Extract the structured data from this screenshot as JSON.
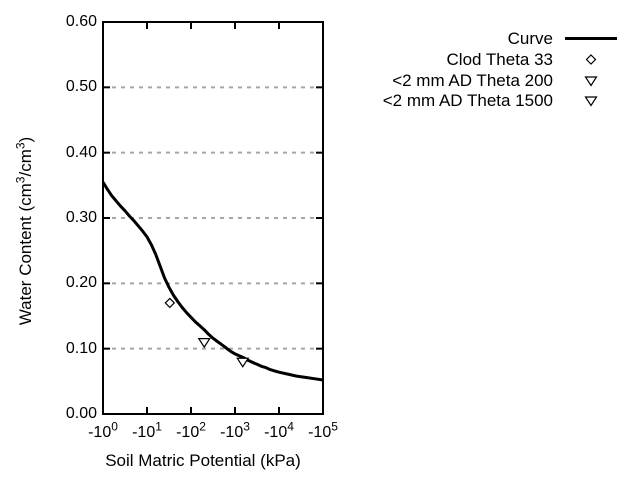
{
  "colors": {
    "foreground": "#000000",
    "grid": "#a6a6a6",
    "background": "#ffffff",
    "curve": "#000000"
  },
  "chart_data": {
    "type": "line",
    "title": "",
    "xlabel": "Soil Matric Potential (kPa)",
    "ylabel": "Water Content (cm3/cm3)",
    "ylabel_parts": [
      {
        "text": "Water Content (cm",
        "sup": false
      },
      {
        "text": "3",
        "sup": true
      },
      {
        "text": "/cm",
        "sup": false
      },
      {
        "text": "3",
        "sup": true
      },
      {
        "text": ")",
        "sup": false
      }
    ],
    "x_axis": {
      "scale": "log10 of negative kPa",
      "decade_min": 0,
      "decade_max": 5
    },
    "ylim": [
      0.0,
      0.6
    ],
    "grid_y": [
      0.1,
      0.2,
      0.3,
      0.4,
      0.5
    ],
    "grid_style": "dashed",
    "legend_position": "outside top-right",
    "y_ticks": [
      {
        "value": 0.0,
        "label": "0.00"
      },
      {
        "value": 0.1,
        "label": "0.10"
      },
      {
        "value": 0.2,
        "label": "0.20"
      },
      {
        "value": 0.3,
        "label": "0.30"
      },
      {
        "value": 0.4,
        "label": "0.40"
      },
      {
        "value": 0.5,
        "label": "0.50"
      },
      {
        "value": 0.6,
        "label": "0.60"
      }
    ],
    "x_ticks": [
      {
        "decade": 0,
        "base": "-10",
        "exponent": "0"
      },
      {
        "decade": 1,
        "base": "-10",
        "exponent": "1"
      },
      {
        "decade": 2,
        "base": "-10",
        "exponent": "2"
      },
      {
        "decade": 3,
        "base": "-10",
        "exponent": "3"
      },
      {
        "decade": 4,
        "base": "-10",
        "exponent": "4"
      },
      {
        "decade": 5,
        "base": "-10",
        "exponent": "5"
      }
    ],
    "series": [
      {
        "name": "Curve",
        "kind": "line",
        "marker": null,
        "points_log10x_theta": [
          [
            0.0,
            0.355
          ],
          [
            0.1,
            0.344
          ],
          [
            0.2,
            0.334
          ],
          [
            0.3,
            0.326
          ],
          [
            0.4,
            0.318
          ],
          [
            0.5,
            0.311
          ],
          [
            0.6,
            0.303
          ],
          [
            0.7,
            0.296
          ],
          [
            0.8,
            0.288
          ],
          [
            0.9,
            0.28
          ],
          [
            1.0,
            0.271
          ],
          [
            1.1,
            0.259
          ],
          [
            1.2,
            0.244
          ],
          [
            1.3,
            0.226
          ],
          [
            1.4,
            0.208
          ],
          [
            1.5,
            0.194
          ],
          [
            1.6,
            0.182
          ],
          [
            1.7,
            0.172
          ],
          [
            1.8,
            0.163
          ],
          [
            1.9,
            0.155
          ],
          [
            2.0,
            0.148
          ],
          [
            2.1,
            0.141
          ],
          [
            2.2,
            0.135
          ],
          [
            2.3,
            0.129
          ],
          [
            2.4,
            0.122
          ],
          [
            2.5,
            0.116
          ],
          [
            2.6,
            0.111
          ],
          [
            2.7,
            0.106
          ],
          [
            2.8,
            0.101
          ],
          [
            2.9,
            0.096
          ],
          [
            3.0,
            0.092
          ],
          [
            3.1,
            0.089
          ],
          [
            3.2,
            0.086
          ],
          [
            3.3,
            0.082
          ],
          [
            3.4,
            0.079
          ],
          [
            3.5,
            0.076
          ],
          [
            3.6,
            0.073
          ],
          [
            3.7,
            0.071
          ],
          [
            3.8,
            0.068
          ],
          [
            3.9,
            0.066
          ],
          [
            4.0,
            0.064
          ],
          [
            4.2,
            0.061
          ],
          [
            4.4,
            0.058
          ],
          [
            4.6,
            0.056
          ],
          [
            4.8,
            0.054
          ],
          [
            5.0,
            0.052
          ]
        ]
      },
      {
        "name": "Clod Theta 33",
        "kind": "scatter",
        "marker": "open-diamond",
        "points_kPa_theta": [
          [
            -33,
            0.17
          ]
        ]
      },
      {
        "name": "<2 mm AD Theta 200",
        "kind": "scatter",
        "marker": "open-triangle-down",
        "points_kPa_theta": [
          [
            -200,
            0.11
          ]
        ]
      },
      {
        "name": "<2 mm AD Theta 1500",
        "kind": "scatter",
        "marker": "open-triangle-down",
        "points_kPa_theta": [
          [
            -1500,
            0.08
          ]
        ]
      }
    ]
  }
}
